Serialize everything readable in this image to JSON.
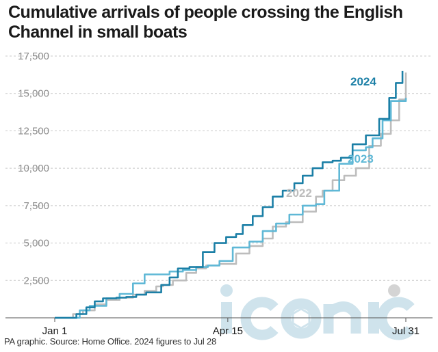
{
  "title": "Cumulative arrivals of people crossing the English Channel in small boats",
  "source": "PA graphic. Source: Home Office. 2024 figures to Jul 28",
  "watermark": "iconic",
  "colors": {
    "2024": "#1b7fa6",
    "2023": "#5fb8d6",
    "2022": "#bdbdbd",
    "grid": "#c8c8c8",
    "watermark": "#cfe3ec"
  },
  "chart_data": {
    "type": "line",
    "xlabel": "",
    "ylabel": "",
    "x_unit": "day of year",
    "xlim": [
      1,
      212
    ],
    "ylim": [
      0,
      17500
    ],
    "yticks": [
      2500,
      5000,
      7500,
      10000,
      12500,
      15000,
      17500
    ],
    "ytick_labels": [
      "2,500",
      "5,000",
      "7,500",
      "10,000",
      "12,500",
      "15,000",
      "17,500"
    ],
    "xticks": [
      1,
      105,
      212
    ],
    "xtick_labels": [
      "Jan 1",
      "Apr 15",
      "Jul 31"
    ],
    "grid": true,
    "series": [
      {
        "name": "2022",
        "color_key": "2022",
        "points": [
          [
            1,
            0
          ],
          [
            10,
            0
          ],
          [
            12,
            250
          ],
          [
            18,
            500
          ],
          [
            25,
            900
          ],
          [
            32,
            1200
          ],
          [
            40,
            1350
          ],
          [
            48,
            1550
          ],
          [
            55,
            1800
          ],
          [
            62,
            2100
          ],
          [
            66,
            2200
          ],
          [
            72,
            2500
          ],
          [
            80,
            3000
          ],
          [
            86,
            3300
          ],
          [
            92,
            3500
          ],
          [
            100,
            3600
          ],
          [
            110,
            4300
          ],
          [
            118,
            4800
          ],
          [
            126,
            5300
          ],
          [
            132,
            6100
          ],
          [
            140,
            6400
          ],
          [
            150,
            7100
          ],
          [
            158,
            8100
          ],
          [
            162,
            8500
          ],
          [
            168,
            9200
          ],
          [
            175,
            9500
          ],
          [
            182,
            10000
          ],
          [
            190,
            11500
          ],
          [
            197,
            12300
          ],
          [
            203,
            13200
          ],
          [
            208,
            14600
          ],
          [
            212,
            16400
          ]
        ]
      },
      {
        "name": "2023",
        "color_key": "2023",
        "points": [
          [
            1,
            0
          ],
          [
            12,
            0
          ],
          [
            16,
            500
          ],
          [
            22,
            800
          ],
          [
            32,
            1300
          ],
          [
            40,
            1600
          ],
          [
            48,
            2300
          ],
          [
            55,
            2900
          ],
          [
            62,
            2900
          ],
          [
            70,
            3100
          ],
          [
            78,
            3200
          ],
          [
            86,
            3400
          ],
          [
            93,
            3500
          ],
          [
            100,
            3800
          ],
          [
            108,
            4700
          ],
          [
            118,
            5100
          ],
          [
            126,
            5800
          ],
          [
            134,
            6300
          ],
          [
            142,
            6900
          ],
          [
            150,
            7500
          ],
          [
            158,
            7600
          ],
          [
            163,
            8500
          ],
          [
            172,
            10300
          ],
          [
            180,
            11200
          ],
          [
            188,
            11400
          ],
          [
            192,
            12000
          ],
          [
            198,
            13200
          ],
          [
            203,
            14500
          ],
          [
            212,
            14700
          ]
        ]
      },
      {
        "name": "2024",
        "color_key": "2024",
        "points": [
          [
            1,
            0
          ],
          [
            12,
            0
          ],
          [
            14,
            250
          ],
          [
            20,
            700
          ],
          [
            25,
            1100
          ],
          [
            30,
            1300
          ],
          [
            38,
            1350
          ],
          [
            44,
            1400
          ],
          [
            50,
            1550
          ],
          [
            56,
            1700
          ],
          [
            62,
            1700
          ],
          [
            65,
            2200
          ],
          [
            70,
            2700
          ],
          [
            75,
            3300
          ],
          [
            82,
            3400
          ],
          [
            90,
            4400
          ],
          [
            97,
            5000
          ],
          [
            104,
            5400
          ],
          [
            110,
            5600
          ],
          [
            114,
            6200
          ],
          [
            120,
            6800
          ],
          [
            126,
            7400
          ],
          [
            132,
            8100
          ],
          [
            138,
            8500
          ],
          [
            145,
            9000
          ],
          [
            150,
            9500
          ],
          [
            156,
            10000
          ],
          [
            162,
            10400
          ],
          [
            168,
            10500
          ],
          [
            173,
            10700
          ],
          [
            180,
            11600
          ],
          [
            188,
            12200
          ],
          [
            196,
            13300
          ],
          [
            202,
            14700
          ],
          [
            206,
            15700
          ],
          [
            210,
            16500
          ]
        ]
      }
    ],
    "series_labels": [
      {
        "text": "2024",
        "series": "2024"
      },
      {
        "text": "2023",
        "series": "2023"
      },
      {
        "text": "2022",
        "series": "2022"
      }
    ]
  }
}
